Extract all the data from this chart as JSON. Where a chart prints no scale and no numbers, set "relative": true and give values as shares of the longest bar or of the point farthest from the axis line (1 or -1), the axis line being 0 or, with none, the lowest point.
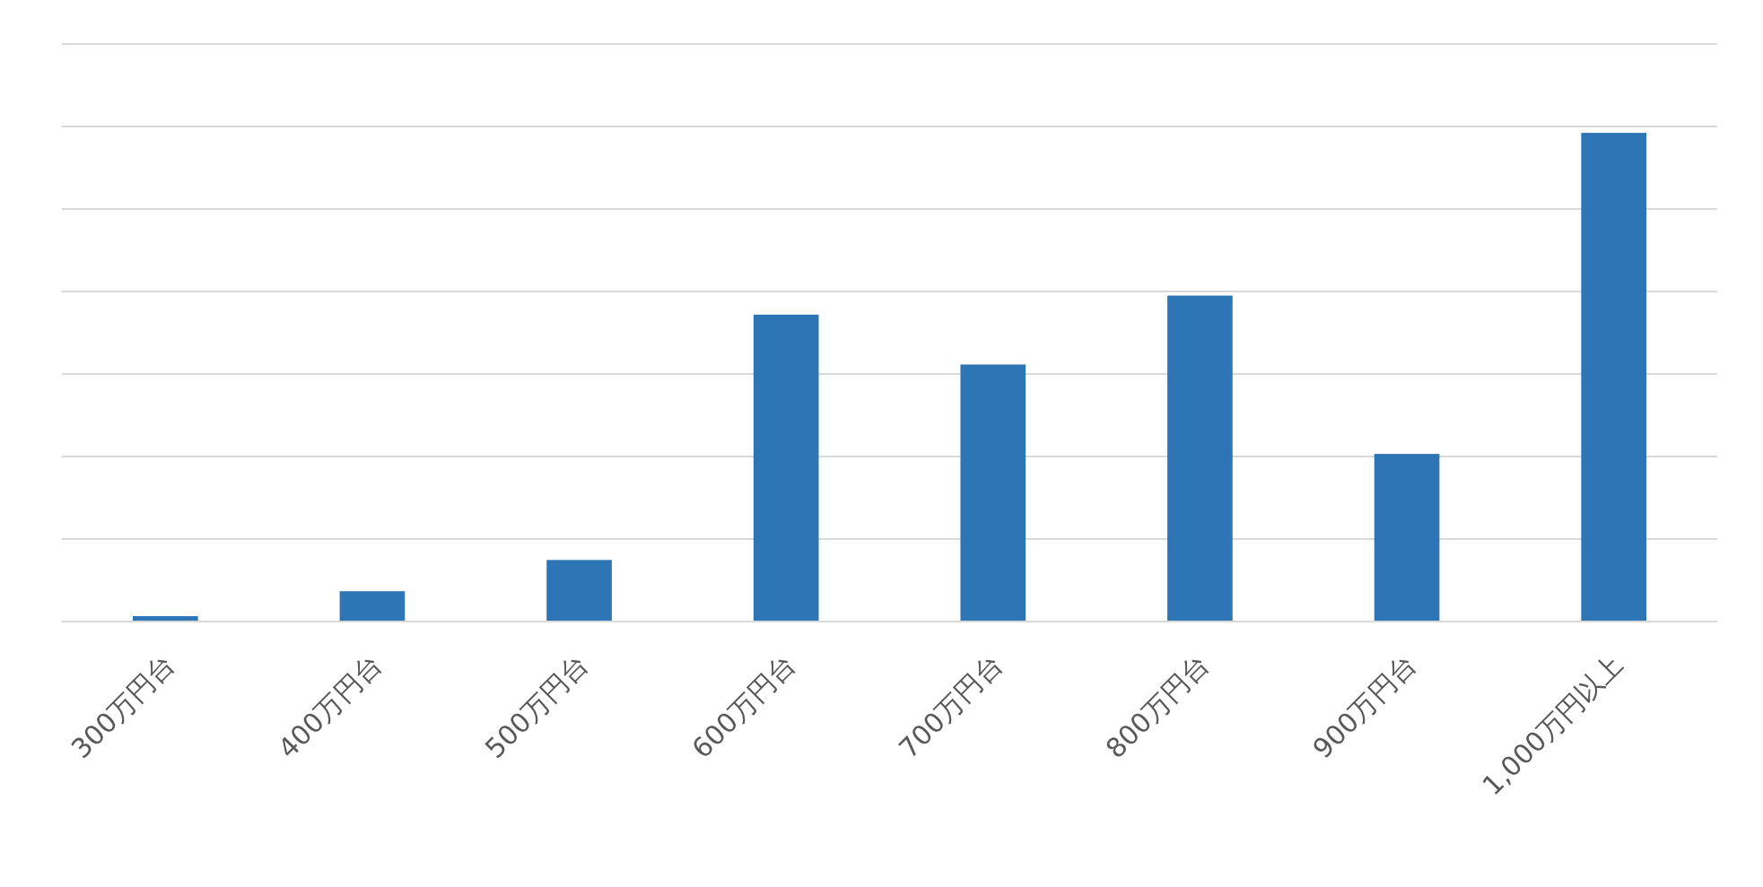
{
  "chart_data": {
    "type": "bar",
    "relative": true,
    "grid": "y",
    "categories": [
      "300万円台",
      "400万円台",
      "500万円台",
      "600万円台",
      "700万円台",
      "800万円台",
      "900万円台",
      "1,000万円以上"
    ],
    "values": [
      0.011,
      0.062,
      0.126,
      0.628,
      0.526,
      0.667,
      0.343,
      1
    ],
    "color": "#2e75b6"
  }
}
